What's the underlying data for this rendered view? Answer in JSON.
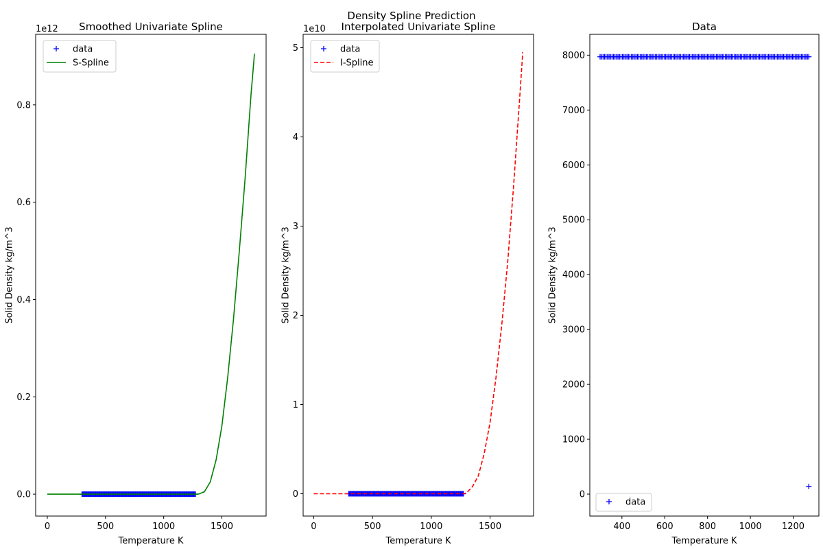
{
  "figure": {
    "suptitle": "Density Spline Prediction"
  },
  "chart_data": [
    {
      "type": "line",
      "title": "Smoothed Univariate Spline",
      "xlabel": "Temperature K",
      "ylabel": "Solid Density kg/m^3",
      "y_offset_text": "1e12",
      "xlim": [
        -100,
        1880
      ],
      "ylim": [
        -0.045,
        0.945
      ],
      "x_ticks": [
        0,
        500,
        1000,
        1500
      ],
      "x_tick_labels": [
        "0",
        "500",
        "1000",
        "1500"
      ],
      "y_ticks": [
        0,
        0.2,
        0.4,
        0.6,
        0.8
      ],
      "y_tick_labels": [
        "0.0",
        "0.2",
        "0.4",
        "0.6",
        "0.8"
      ],
      "legend": {
        "location": "upper left",
        "entries": [
          "data",
          "S-Spline"
        ]
      },
      "colors": {
        "data": "#0000ff",
        "spline": "#008000"
      },
      "series": [
        {
          "name": "data",
          "style": "markers",
          "x_range": [
            298,
            1273
          ],
          "y": 7.97e-09
        },
        {
          "name": "S-Spline",
          "style": "solid",
          "x": [
            0,
            1273,
            1300,
            1350,
            1400,
            1450,
            1500,
            1550,
            1600,
            1650,
            1700,
            1750,
            1780
          ],
          "y": [
            0,
            0,
            0.0002,
            0.005,
            0.025,
            0.07,
            0.14,
            0.24,
            0.36,
            0.5,
            0.65,
            0.82,
            0.905
          ]
        }
      ]
    },
    {
      "type": "line",
      "title": "Interpolated Univariate Spline",
      "xlabel": "Temperature K",
      "ylabel": "Solid Density kg/m^3",
      "y_offset_text": "1e10",
      "xlim": [
        -90,
        1870
      ],
      "ylim": [
        -0.25,
        5.15
      ],
      "x_ticks": [
        0,
        500,
        1000,
        1500
      ],
      "x_tick_labels": [
        "0",
        "500",
        "1000",
        "1500"
      ],
      "y_ticks": [
        0,
        1,
        2,
        3,
        4,
        5
      ],
      "y_tick_labels": [
        "0",
        "1",
        "2",
        "3",
        "4",
        "5"
      ],
      "legend": {
        "location": "upper left",
        "entries": [
          "data",
          "I-Spline"
        ]
      },
      "colors": {
        "data": "#0000ff",
        "spline": "#ff0000"
      },
      "series": [
        {
          "name": "data",
          "style": "markers",
          "x_range": [
            298,
            1273
          ],
          "y": 8e-07
        },
        {
          "name": "I-Spline",
          "style": "dashed",
          "x": [
            0,
            1273,
            1300,
            1350,
            1400,
            1450,
            1500,
            1550,
            1600,
            1650,
            1700,
            1750,
            1778
          ],
          "y": [
            0,
            0,
            0.01,
            0.08,
            0.2,
            0.45,
            0.8,
            1.3,
            1.9,
            2.6,
            3.45,
            4.4,
            4.95
          ]
        }
      ]
    },
    {
      "type": "scatter",
      "title": "Data",
      "xlabel": "Temperature K",
      "ylabel": "Solid Density kg/m^3",
      "xlim": [
        250,
        1320
      ],
      "ylim": [
        -400,
        8380
      ],
      "x_ticks": [
        400,
        600,
        800,
        1000,
        1200
      ],
      "x_tick_labels": [
        "400",
        "600",
        "800",
        "1000",
        "1200"
      ],
      "y_ticks": [
        0,
        1000,
        2000,
        3000,
        4000,
        5000,
        6000,
        7000,
        8000
      ],
      "y_tick_labels": [
        "0",
        "1000",
        "2000",
        "3000",
        "4000",
        "5000",
        "6000",
        "7000",
        "8000"
      ],
      "legend": {
        "location": "lower left",
        "entries": [
          "data"
        ]
      },
      "colors": {
        "data": "#0000ff"
      },
      "series": [
        {
          "name": "data",
          "style": "markers",
          "x_range": [
            298,
            1273
          ],
          "y": 7970,
          "outlier": {
            "x": 1273,
            "y": 140
          }
        }
      ]
    }
  ]
}
